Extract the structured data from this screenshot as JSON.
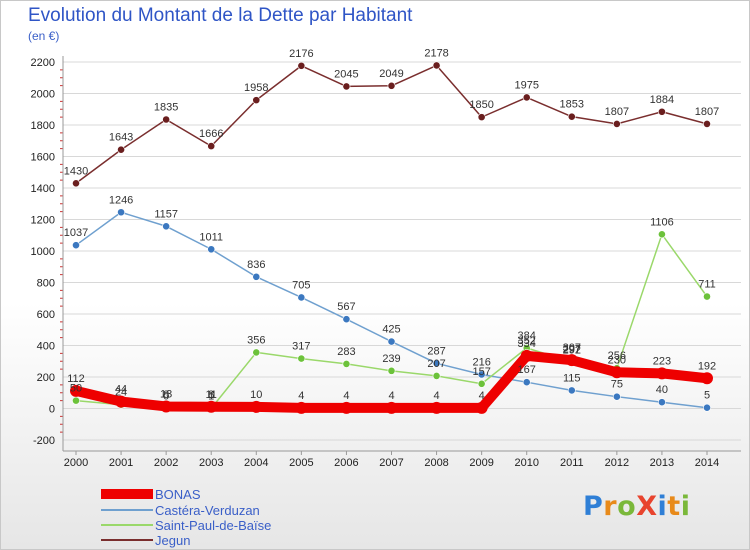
{
  "title": "Evolution du Montant de la Dette par Habitant",
  "subtitle": "(en €)",
  "logo": {
    "text": "ProXiti",
    "letter_colors": [
      "#2f7fd6",
      "#e88a1a",
      "#7ab83a",
      "#e8442e",
      "#2f7fd6",
      "#e88a1a",
      "#7ab83a"
    ]
  },
  "chart_data": {
    "type": "line",
    "title": "Evolution du Montant de la Dette par Habitant",
    "subtitle": "(en €)",
    "xlabel": "",
    "ylabel": "",
    "x": [
      "2000",
      "2001",
      "2002",
      "2003",
      "2004",
      "2005",
      "2006",
      "2007",
      "2008",
      "2009",
      "2010",
      "2011",
      "2012",
      "2013",
      "2014"
    ],
    "ylim": [
      -200,
      2200
    ],
    "yticks": [
      -200,
      0,
      200,
      400,
      600,
      800,
      1000,
      1200,
      1400,
      1600,
      1800,
      2000,
      2200
    ],
    "grid": "horizontal",
    "legend_position": "bottom-left",
    "series": [
      {
        "name": "Jegun",
        "color": "#7a2e2e",
        "marker_color": "#6a1e1e",
        "values": [
          1430,
          1643,
          1835,
          1666,
          1958,
          2176,
          2045,
          2049,
          2178,
          1850,
          1975,
          1853,
          1807,
          1884,
          1807
        ],
        "labels": [
          "1430",
          "1643",
          "1835",
          "1666",
          "1958",
          "2176",
          "2045",
          "2049",
          "2178",
          "1850",
          "1975",
          "1853",
          "1807",
          "1884",
          "1807"
        ]
      },
      {
        "name": "Castéra-Verduzan",
        "color": "#6fa0cf",
        "marker_color": "#3b78c0",
        "values": [
          1037,
          1246,
          1157,
          1011,
          836,
          705,
          567,
          425,
          287,
          216,
          167,
          115,
          75,
          40,
          5
        ],
        "labels": [
          "1037",
          "1246",
          "1157",
          "1011",
          "836",
          "705",
          "567",
          "425",
          "287",
          "216",
          "167",
          "115",
          "75",
          "40",
          "5"
        ]
      },
      {
        "name": "Saint-Paul-de-Baïse",
        "color": "#9ad86a",
        "marker_color": "#6cc23a",
        "values": [
          50,
          24,
          0,
          1,
          356,
          317,
          283,
          239,
          207,
          157,
          384,
          297,
          256,
          1106,
          711
        ],
        "labels": [
          "50",
          "24",
          "0",
          "1",
          "356",
          "317",
          "283",
          "239",
          "207",
          "157",
          "384",
          "297",
          "256",
          "1106",
          "711"
        ]
      },
      {
        "name": "BONAS",
        "color": "#ee0000",
        "marker_color": "#ee0000",
        "values": [
          112,
          44,
          13,
          11,
          10,
          4,
          4,
          4,
          4,
          4,
          334,
          307,
          230,
          223,
          192
        ],
        "labels": [
          "112",
          "44",
          "13",
          "11",
          "10",
          "4",
          "4",
          "4",
          "4",
          "4",
          "334",
          "307",
          "230",
          "223",
          "192"
        ]
      },
      {
        "name": "",
        "color": "#e88a1a",
        "marker_color": "#e88a1a",
        "values": [
          100,
          30,
          8,
          8,
          10,
          4,
          4,
          4,
          4,
          4,
          352,
          292,
          220,
          223,
          192
        ],
        "labels": [
          "",
          "",
          "8",
          "8",
          "",
          "",
          "",
          "",
          "",
          "",
          "352",
          "292",
          "",
          "",
          ""
        ]
      }
    ]
  },
  "legend": [
    {
      "label": "BONAS",
      "color": "#ee0000",
      "thickness": 10
    },
    {
      "label": "Castéra-Verduzan",
      "color": "#6fa0cf",
      "thickness": 2
    },
    {
      "label": "Saint-Paul-de-Baïse",
      "color": "#9ad86a",
      "thickness": 2
    },
    {
      "label": "Jegun",
      "color": "#7a2e2e",
      "thickness": 2
    }
  ]
}
